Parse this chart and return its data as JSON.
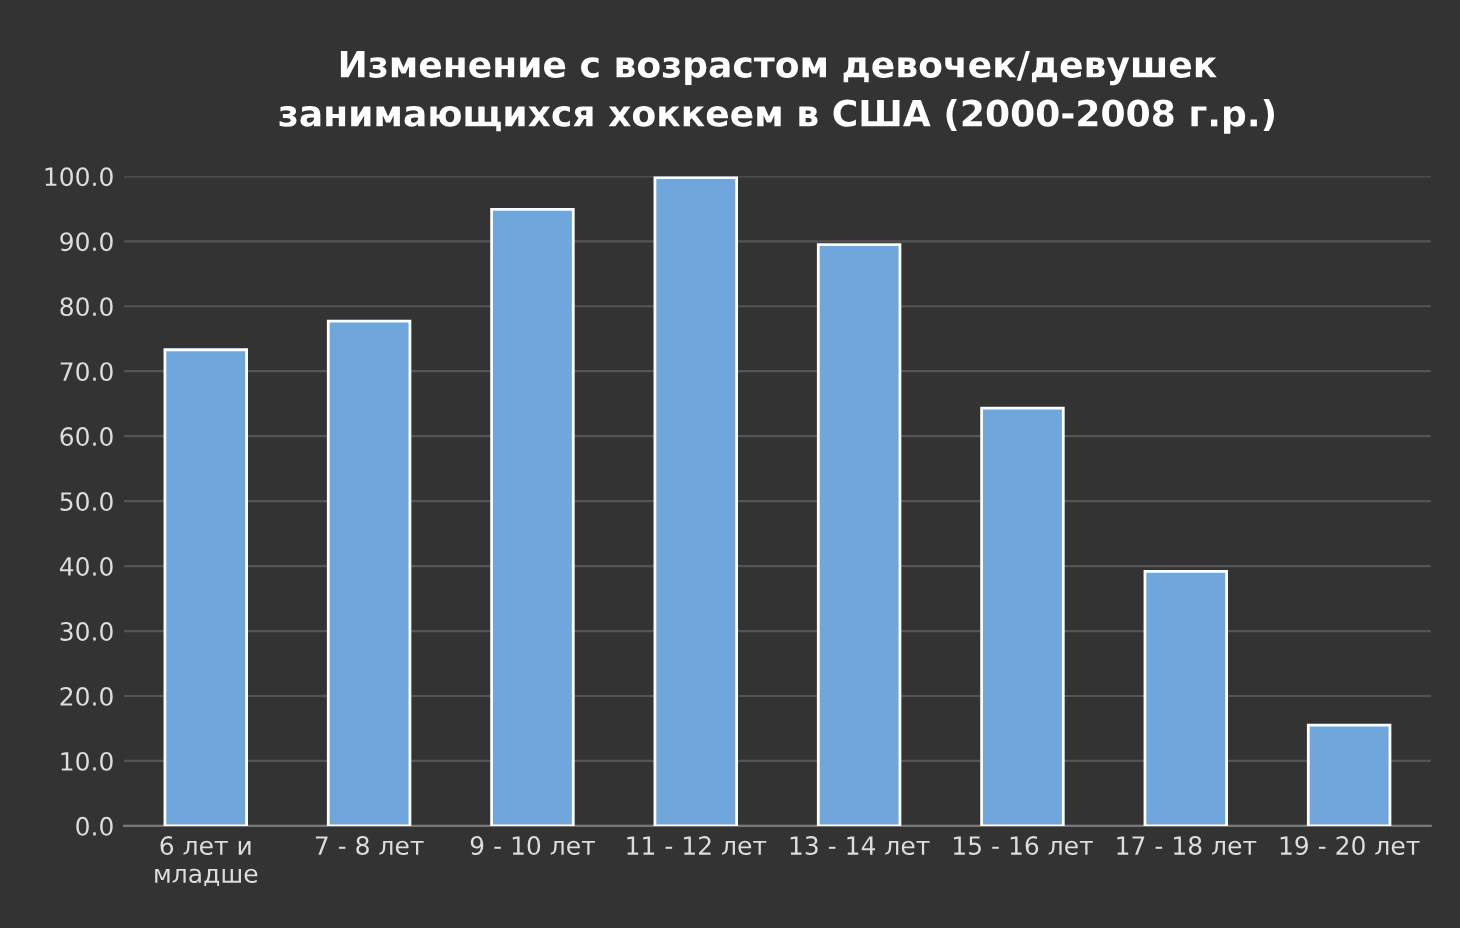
{
  "chart_data": {
    "type": "bar",
    "title": "Изменение с возрастом девочек/девушек\nзанимающихся хоккеем в США (2000-2008 г.р.)",
    "categories": [
      "6 лет и\nмладше",
      "7 - 8 лет",
      "9 - 10 лет",
      "11 - 12 лет",
      "13 - 14 лет",
      "15 - 16 лет",
      "17 - 18 лет",
      "19 - 20 лет"
    ],
    "values": [
      73.3,
      77.7,
      94.9,
      99.8,
      89.5,
      64.3,
      39.2,
      15.5
    ],
    "color": "#6fa6dc",
    "ylim": [
      0,
      100
    ],
    "yticks": [
      {
        "value": 0,
        "label": "0.0"
      },
      {
        "value": 10,
        "label": "10.0"
      },
      {
        "value": 20,
        "label": "20.0"
      },
      {
        "value": 30,
        "label": "30.0"
      },
      {
        "value": 40,
        "label": "40.0"
      },
      {
        "value": 50,
        "label": "50.0"
      },
      {
        "value": 60,
        "label": "60.0"
      },
      {
        "value": 70,
        "label": "70.0"
      },
      {
        "value": 80,
        "label": "80.0"
      },
      {
        "value": 90,
        "label": "90.0"
      },
      {
        "value": 100,
        "label": "100.0"
      }
    ],
    "grid": "y"
  }
}
